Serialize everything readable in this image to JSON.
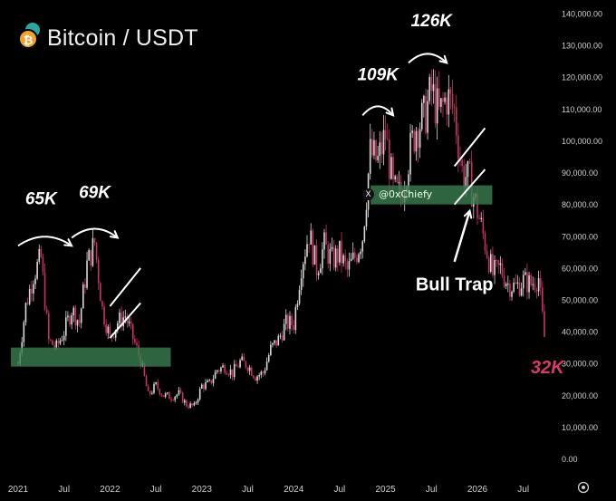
{
  "header": {
    "title": "Bitcoin / USDT",
    "icon": "bitcoin-coin-icon"
  },
  "watermark": {
    "text": "@0xChiefy",
    "icon": "x-logo-icon"
  },
  "colors": {
    "background": "#000000",
    "down_candle": "#c2355f",
    "up_candle": "#d8d8d8",
    "support_zone": "#3a7d4f",
    "price_label": "#d63a66",
    "text": "#ffffff",
    "axis_text": "#cfcfcf"
  },
  "chart_data": {
    "type": "candlestick",
    "title": "Bitcoin / USDT",
    "x_ticks": [
      "2021",
      "Jul",
      "2022",
      "Jul",
      "2023",
      "Jul",
      "2024",
      "Jul",
      "2025",
      "Jul",
      "2026",
      "Jul"
    ],
    "y_ticks": [
      "140,000.00",
      "130,000.00",
      "120,000.00",
      "110,000.00",
      "100,000.00",
      "90,000.00",
      "80,000.00",
      "70,000.00",
      "60,000.00",
      "50,000.00",
      "40,000.00",
      "30,000.00",
      "20,000.00",
      "10,000.00",
      "0.00"
    ],
    "ylim": [
      0,
      140000
    ],
    "price_path": [
      [
        "2021-01",
        30000
      ],
      [
        "2021-02",
        48000
      ],
      [
        "2021-03",
        58000
      ],
      [
        "2021-04",
        63000
      ],
      [
        "2021-05",
        37000
      ],
      [
        "2021-06",
        35000
      ],
      [
        "2021-07",
        40000
      ],
      [
        "2021-08",
        47000
      ],
      [
        "2021-09",
        43000
      ],
      [
        "2021-10",
        61000
      ],
      [
        "2021-11",
        68000
      ],
      [
        "2021-12",
        47000
      ],
      [
        "2022-01",
        38000
      ],
      [
        "2022-02",
        43000
      ],
      [
        "2022-03",
        45000
      ],
      [
        "2022-04",
        38000
      ],
      [
        "2022-05",
        31000
      ],
      [
        "2022-06",
        20000
      ],
      [
        "2022-07",
        23000
      ],
      [
        "2022-08",
        20000
      ],
      [
        "2022-09",
        19500
      ],
      [
        "2022-10",
        20500
      ],
      [
        "2022-11",
        17000
      ],
      [
        "2022-12",
        16500
      ],
      [
        "2023-01",
        23000
      ],
      [
        "2023-02",
        23500
      ],
      [
        "2023-03",
        28000
      ],
      [
        "2023-04",
        29000
      ],
      [
        "2023-05",
        27000
      ],
      [
        "2023-06",
        30500
      ],
      [
        "2023-07",
        29500
      ],
      [
        "2023-08",
        26000
      ],
      [
        "2023-09",
        27000
      ],
      [
        "2023-10",
        34500
      ],
      [
        "2023-11",
        37500
      ],
      [
        "2023-12",
        42500
      ],
      [
        "2024-01",
        42500
      ],
      [
        "2024-02",
        61000
      ],
      [
        "2024-03",
        71000
      ],
      [
        "2024-04",
        60000
      ],
      [
        "2024-05",
        67000
      ],
      [
        "2024-06",
        62500
      ],
      [
        "2024-07",
        64500
      ],
      [
        "2024-08",
        59000
      ],
      [
        "2024-09",
        63500
      ],
      [
        "2024-10",
        70000
      ],
      [
        "2024-11",
        96000
      ],
      [
        "2024-12",
        93500
      ],
      [
        "2025-01",
        102000
      ],
      [
        "2025-02",
        84500
      ],
      [
        "2025-03",
        82500
      ],
      [
        "2025-04",
        94500
      ],
      [
        "2025-05",
        104500
      ],
      [
        "2025-06",
        107000
      ],
      [
        "2025-07",
        115500
      ],
      [
        "2025-08",
        108000
      ],
      [
        "2025-09",
        114000
      ],
      [
        "2025-10",
        109500
      ],
      [
        "2025-11",
        90500
      ],
      [
        "2025-12",
        87500
      ],
      [
        "2026-01",
        78000
      ],
      [
        "2026-02",
        68000
      ],
      [
        "2026-03",
        58000
      ],
      [
        "2026-04",
        60000
      ],
      [
        "2026-05",
        55000
      ],
      [
        "2026-06",
        54000
      ],
      [
        "2026-07",
        56000
      ],
      [
        "2026-08",
        55000
      ],
      [
        "2026-09",
        57000
      ],
      [
        "2026-10",
        32000
      ]
    ],
    "support_zones": [
      {
        "from": "2021-01",
        "to": "2022-08",
        "low": 29000,
        "high": 35000
      },
      {
        "from": "2024-12",
        "to": "2026-02",
        "low": 80000,
        "high": 86000
      }
    ],
    "trend_lines": [
      {
        "from": [
          "2022-01",
          48000
        ],
        "to": [
          "2022-05",
          60000
        ]
      },
      {
        "from": [
          "2022-01",
          38000
        ],
        "to": [
          "2022-05",
          49000
        ]
      },
      {
        "from": [
          "2025-10",
          92000
        ],
        "to": [
          "2026-02",
          104000
        ]
      },
      {
        "from": [
          "2025-10",
          80000
        ],
        "to": [
          "2026-02",
          91000
        ]
      }
    ],
    "annotations": [
      {
        "text": "65K",
        "at": [
          "2021-04",
          80000
        ]
      },
      {
        "text": "69K",
        "at": [
          "2021-11",
          82000
        ]
      },
      {
        "text": "109K",
        "at": [
          "2024-12",
          119000
        ]
      },
      {
        "text": "126K",
        "at": [
          "2025-07",
          136000
        ]
      },
      {
        "text": "Bull Trap",
        "at": [
          "2025-10",
          53000
        ]
      }
    ],
    "arrows": [
      {
        "type": "arc",
        "from": [
          "2021-01",
          67000
        ],
        "to": [
          "2021-08",
          67000
        ]
      },
      {
        "type": "arc",
        "from": [
          "2021-08",
          69500
        ],
        "to": [
          "2022-02",
          69500
        ]
      },
      {
        "type": "arc",
        "from": [
          "2024-10",
          108000
        ],
        "to": [
          "2025-02",
          108000
        ]
      },
      {
        "type": "arc",
        "from": [
          "2025-04",
          124500
        ],
        "to": [
          "2025-09",
          124500
        ]
      },
      {
        "type": "straight",
        "from": [
          "2025-10",
          62000
        ],
        "to": [
          "2025-12",
          78000
        ]
      }
    ],
    "last_price_label": {
      "text": "32K",
      "value": 32000
    }
  }
}
